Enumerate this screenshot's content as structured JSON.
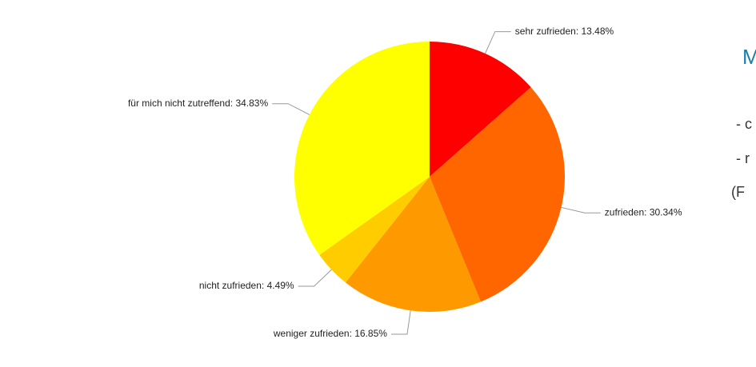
{
  "chart_data": {
    "type": "pie",
    "values": [
      13.48,
      30.34,
      16.85,
      4.49,
      34.83
    ],
    "value_labels": [
      "sehr zufrieden: 13.48%",
      "zufrieden: 30.34%",
      "weniger zufrieden: 16.85%",
      "nicht zufrieden: 4.49%",
      "für mich nicht zutreffend: 34.83%"
    ],
    "colors": [
      "#ff0000",
      "#ff6600",
      "#ff9900",
      "#ffcc00",
      "#ffff00"
    ]
  },
  "side_text": {
    "heading": "M",
    "lines": [
      "- c",
      "- r",
      "(F"
    ]
  }
}
